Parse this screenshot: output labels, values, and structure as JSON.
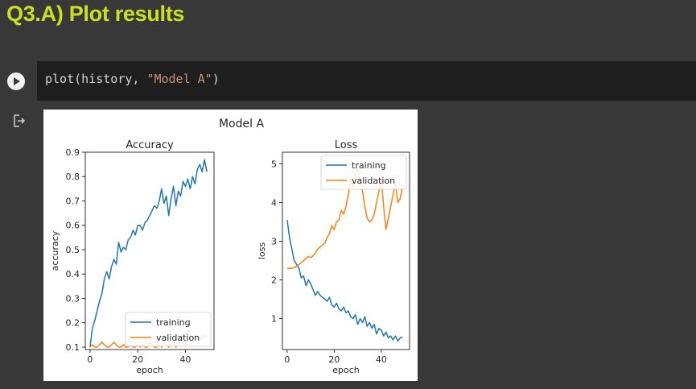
{
  "heading": {
    "text": "Q3.A) Plot results"
  },
  "code_cell": {
    "code_prefix": "plot(history, ",
    "code_string": "\"Model A\"",
    "code_suffix": ")"
  },
  "output": {
    "icon": "output-redirect-icon"
  },
  "chart_data": {
    "suptitle": "Model A",
    "charts": [
      {
        "type": "line",
        "title": "Accuracy",
        "xlabel": "epoch",
        "ylabel": "accuracy",
        "xlim": [
          -2,
          52
        ],
        "ylim": [
          0.09,
          0.9
        ],
        "xticks": [
          0,
          20,
          40
        ],
        "yticks": [
          0.1,
          0.2,
          0.3,
          0.4,
          0.5,
          0.6,
          0.7,
          0.8,
          0.9
        ],
        "ytick_labels": [
          "0.1",
          "0.2",
          "0.3",
          "0.4",
          "0.5",
          "0.6",
          "0.7",
          "0.8",
          "0.9"
        ],
        "legend": "lower-right",
        "series": [
          {
            "name": "training",
            "color": "#1f77b4",
            "x": [
              0,
              1,
              2,
              3,
              4,
              5,
              6,
              7,
              8,
              9,
              10,
              11,
              12,
              13,
              14,
              15,
              16,
              17,
              18,
              19,
              20,
              21,
              22,
              23,
              24,
              25,
              26,
              27,
              28,
              29,
              30,
              31,
              32,
              33,
              34,
              35,
              36,
              37,
              38,
              39,
              40,
              41,
              42,
              43,
              44,
              45,
              46,
              47,
              48,
              49
            ],
            "y": [
              0.1,
              0.18,
              0.21,
              0.25,
              0.29,
              0.32,
              0.38,
              0.41,
              0.38,
              0.43,
              0.46,
              0.44,
              0.53,
              0.49,
              0.51,
              0.5,
              0.54,
              0.55,
              0.58,
              0.56,
              0.6,
              0.6,
              0.58,
              0.61,
              0.62,
              0.64,
              0.66,
              0.68,
              0.67,
              0.7,
              0.75,
              0.69,
              0.72,
              0.64,
              0.71,
              0.76,
              0.68,
              0.74,
              0.72,
              0.78,
              0.76,
              0.79,
              0.75,
              0.8,
              0.77,
              0.83,
              0.85,
              0.82,
              0.87,
              0.82
            ]
          },
          {
            "name": "validation",
            "color": "#ff7f0e",
            "x": [
              0,
              1,
              2,
              3,
              4,
              5,
              6,
              7,
              8,
              9,
              10,
              11,
              12,
              13,
              14,
              15,
              16,
              17,
              18,
              19,
              20,
              21,
              22,
              23,
              24,
              25,
              26,
              27,
              28,
              29,
              30,
              31,
              32,
              33,
              34,
              35,
              36,
              37,
              38,
              39,
              40,
              41,
              42,
              43,
              44,
              45,
              46,
              47,
              48,
              49
            ],
            "y": [
              0.1,
              0.11,
              0.1,
              0.1,
              0.11,
              0.12,
              0.11,
              0.1,
              0.1,
              0.11,
              0.12,
              0.11,
              0.1,
              0.1,
              0.11,
              0.1,
              0.1,
              0.11,
              0.1,
              0.1,
              0.11,
              0.1,
              0.11,
              0.1,
              0.1,
              0.12,
              0.11,
              0.1,
              0.1,
              0.11,
              0.1,
              0.12,
              0.11,
              0.1,
              0.11,
              0.12,
              0.1,
              0.11,
              0.13,
              0.14,
              0.15,
              0.17,
              0.16,
              0.14,
              0.15,
              0.14,
              0.13,
              0.14,
              0.15,
              0.14
            ]
          }
        ]
      },
      {
        "type": "line",
        "title": "Loss",
        "xlabel": "epoch",
        "ylabel": "loss",
        "xlim": [
          -2,
          52
        ],
        "ylim": [
          0.2,
          5.3
        ],
        "xticks": [
          0,
          20,
          40
        ],
        "yticks": [
          1,
          2,
          3,
          4,
          5
        ],
        "ytick_labels": [
          "1",
          "2",
          "3",
          "4",
          "5"
        ],
        "legend": "top-right",
        "series": [
          {
            "name": "training",
            "color": "#1f77b4",
            "x": [
              0,
              1,
              2,
              3,
              4,
              5,
              6,
              7,
              8,
              9,
              10,
              11,
              12,
              13,
              14,
              15,
              16,
              17,
              18,
              19,
              20,
              21,
              22,
              23,
              24,
              25,
              26,
              27,
              28,
              29,
              30,
              31,
              32,
              33,
              34,
              35,
              36,
              37,
              38,
              39,
              40,
              41,
              42,
              43,
              44,
              45,
              46,
              47,
              48,
              49
            ],
            "y": [
              3.55,
              3.1,
              2.8,
              2.5,
              2.4,
              2.3,
              2.05,
              2.1,
              1.85,
              2.0,
              1.9,
              1.75,
              1.6,
              1.7,
              1.6,
              1.55,
              1.5,
              1.45,
              1.55,
              1.35,
              1.3,
              1.4,
              1.25,
              1.2,
              1.3,
              1.15,
              1.2,
              1.05,
              1.0,
              1.1,
              0.85,
              1.0,
              0.9,
              1.05,
              0.8,
              0.9,
              0.75,
              0.85,
              0.6,
              0.75,
              0.7,
              0.55,
              0.65,
              0.5,
              0.55,
              0.45,
              0.55,
              0.42,
              0.5,
              0.52
            ]
          },
          {
            "name": "validation",
            "color": "#ff7f0e",
            "x": [
              0,
              1,
              2,
              3,
              4,
              5,
              6,
              7,
              8,
              9,
              10,
              11,
              12,
              13,
              14,
              15,
              16,
              17,
              18,
              19,
              20,
              21,
              22,
              23,
              24,
              25,
              26,
              27,
              28,
              29,
              30,
              31,
              32,
              33,
              34,
              35,
              36,
              37,
              38,
              39,
              40,
              41,
              42,
              43,
              44,
              45,
              46,
              47,
              48,
              49
            ],
            "y": [
              2.3,
              2.3,
              2.3,
              2.32,
              2.35,
              2.4,
              2.45,
              2.5,
              2.55,
              2.6,
              2.58,
              2.62,
              2.7,
              2.8,
              2.85,
              2.9,
              2.95,
              3.1,
              3.2,
              3.4,
              3.3,
              3.5,
              3.55,
              3.8,
              3.7,
              3.9,
              4.2,
              4.6,
              4.4,
              4.8,
              4.9,
              4.6,
              4.3,
              3.9,
              3.6,
              3.5,
              3.55,
              3.7,
              4.0,
              4.3,
              4.6,
              3.9,
              3.3,
              3.6,
              3.9,
              4.2,
              4.5,
              4.0,
              4.1,
              4.4
            ]
          }
        ]
      }
    ]
  }
}
